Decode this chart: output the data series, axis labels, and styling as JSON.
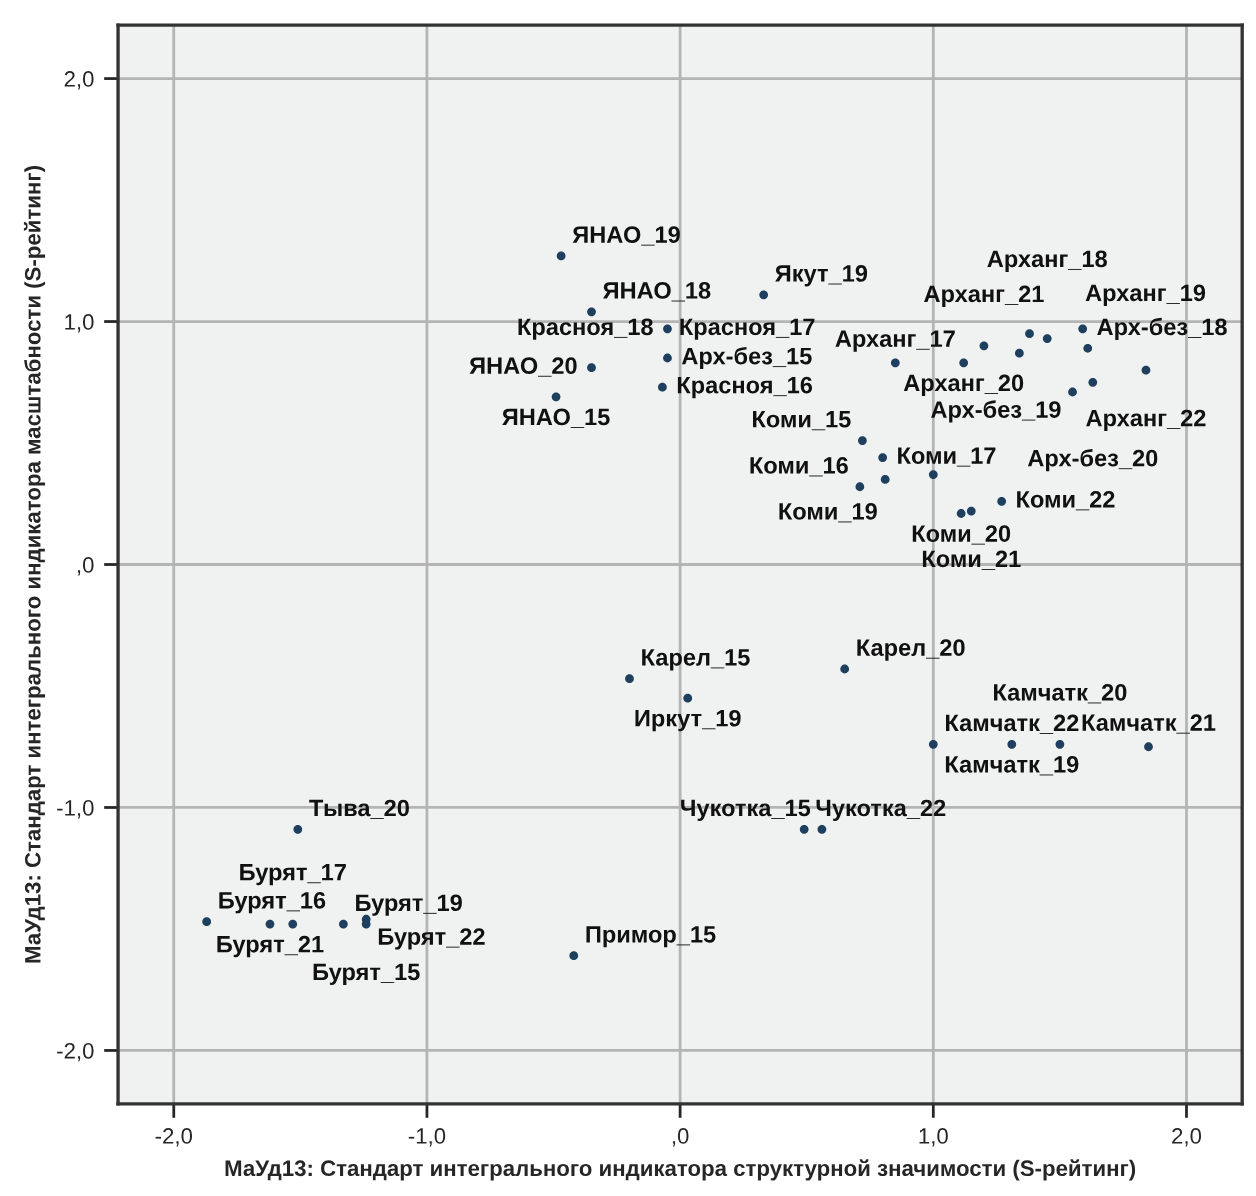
{
  "chart_data": {
    "type": "scatter",
    "xlabel": "МаУд13: Стандарт интегрального индикатора структурной значимости (S-рейтинг)",
    "ylabel": "МаУд13: Стандарт интегрального индикатора масштабности (S-рейтинг)",
    "xlim": [
      -2.22,
      2.22
    ],
    "ylim": [
      -2.22,
      2.22
    ],
    "xticks": [
      {
        "value": -2,
        "label": "-2,0"
      },
      {
        "value": -1,
        "label": "-1,0"
      },
      {
        "value": 0,
        "label": ",0"
      },
      {
        "value": 1,
        "label": "1,0"
      },
      {
        "value": 2,
        "label": "2,0"
      }
    ],
    "yticks": [
      {
        "value": -2,
        "label": "-2,0"
      },
      {
        "value": -1,
        "label": "-1,0"
      },
      {
        "value": 0,
        "label": ",0"
      },
      {
        "value": 1,
        "label": "1,0"
      },
      {
        "value": 2,
        "label": "2,0"
      }
    ],
    "grid": true,
    "marker": "circle",
    "series": [
      {
        "color": "#1f3f5f",
        "x": [
          -0.47,
          -0.35,
          -0.06,
          -0.05,
          -0.35,
          -0.49,
          -0.05,
          -0.07,
          0.33,
          0.85,
          1.12,
          1.2,
          1.38,
          1.45,
          1.59,
          1.84,
          1.55,
          1.63,
          1.34,
          1.61,
          0.72,
          0.71,
          0.8,
          1.0,
          1.11,
          1.15,
          1.27,
          0.81,
          -0.2,
          0.03,
          0.65,
          1.0,
          1.31,
          1.5,
          1.85,
          0.49,
          0.56,
          -1.51,
          -1.87,
          -1.62,
          -1.53,
          -1.33,
          -1.24,
          -1.24,
          -0.42
        ],
        "values": [
          1.27,
          1.04,
          null,
          0.97,
          0.81,
          0.69,
          0.85,
          0.73,
          1.11,
          0.83,
          0.83,
          0.9,
          0.95,
          0.93,
          0.97,
          0.8,
          0.71,
          0.75,
          0.87,
          0.89,
          0.51,
          0.32,
          0.44,
          0.37,
          0.21,
          0.22,
          0.26,
          0.35,
          -0.47,
          -0.55,
          -0.43,
          -0.74,
          -0.74,
          -0.74,
          -0.75,
          -1.09,
          -1.09,
          -1.09,
          -1.47,
          -1.48,
          -1.48,
          -1.48,
          -1.46,
          -1.48,
          -1.61
        ]
      }
    ],
    "annotations": [
      {
        "text": "ЯНАО_19",
        "x": -0.47,
        "y": 1.27
      },
      {
        "text": "ЯНАО_18",
        "x": -0.35,
        "y": 1.04
      },
      {
        "text": "Красноя_17",
        "x": -0.06,
        "y": 0.97
      },
      {
        "text": "Красноя_18",
        "x": -0.05,
        "y": 0.97
      },
      {
        "text": "ЯНАО_20",
        "x": -0.35,
        "y": 0.81
      },
      {
        "text": "ЯНАО_15",
        "x": -0.49,
        "y": 0.69
      },
      {
        "text": "Арх-без_15",
        "x": -0.05,
        "y": 0.85
      },
      {
        "text": "Красноя_16",
        "x": -0.07,
        "y": 0.73
      },
      {
        "text": "Якут_19",
        "x": 0.33,
        "y": 1.11
      },
      {
        "text": "Арханг_17",
        "x": 0.85,
        "y": 0.83
      },
      {
        "text": "Арханг_20",
        "x": 1.12,
        "y": 0.83
      },
      {
        "text": "Арханг_21",
        "x": 1.2,
        "y": 0.9
      },
      {
        "text": "Арханг_19",
        "x": 1.38,
        "y": 0.95
      },
      {
        "text": "Арханг_18",
        "x": 1.45,
        "y": 0.93
      },
      {
        "text": "Арх-без_18",
        "x": 1.59,
        "y": 0.97
      },
      {
        "text": "Арханг_22",
        "x": 1.84,
        "y": 0.8
      },
      {
        "text": "Арх-без_19",
        "x": 1.55,
        "y": 0.71
      },
      {
        "text": "Арх-без_20",
        "x": 1.63,
        "y": 0.75
      },
      {
        "text": "Коми_15",
        "x": 0.72,
        "y": 0.51
      },
      {
        "text": "Коми_16",
        "x": 0.71,
        "y": 0.32
      },
      {
        "text": "Коми_17",
        "x": 0.8,
        "y": 0.44
      },
      {
        "text": "Коми_19",
        "x": 1.0,
        "y": 0.37
      },
      {
        "text": "Коми_20",
        "x": 1.11,
        "y": 0.21
      },
      {
        "text": "Коми_21",
        "x": 1.15,
        "y": 0.22
      },
      {
        "text": "Коми_22",
        "x": 1.27,
        "y": 0.26
      },
      {
        "text": "Карел_15",
        "x": -0.2,
        "y": -0.47
      },
      {
        "text": "Иркут_19",
        "x": 0.03,
        "y": -0.55
      },
      {
        "text": "Карел_20",
        "x": 0.65,
        "y": -0.43
      },
      {
        "text": "Камчатк_22",
        "x": 1.0,
        "y": -0.74
      },
      {
        "text": "Камчатк_19",
        "x": 1.31,
        "y": -0.74
      },
      {
        "text": "Камчатк_20",
        "x": 1.5,
        "y": -0.74
      },
      {
        "text": "Камчатк_21",
        "x": 1.85,
        "y": -0.75
      },
      {
        "text": "Чукотка_22",
        "x": 0.49,
        "y": -1.09
      },
      {
        "text": "Чукотка_15",
        "x": 0.56,
        "y": -1.09
      },
      {
        "text": "Тыва_20",
        "x": -1.51,
        "y": -1.09
      },
      {
        "text": "Бурят_16",
        "x": -1.87,
        "y": -1.47
      },
      {
        "text": "Бурят_21",
        "x": -1.62,
        "y": -1.48
      },
      {
        "text": "Бурят_17",
        "x": -1.53,
        "y": -1.48
      },
      {
        "text": "Бурят_19",
        "x": -1.33,
        "y": -1.48
      },
      {
        "text": "Бурят_22",
        "x": -1.24,
        "y": -1.46
      },
      {
        "text": "Бурят_15",
        "x": -1.24,
        "y": -1.48
      },
      {
        "text": "Примор_15",
        "x": -0.42,
        "y": -1.61
      }
    ]
  }
}
